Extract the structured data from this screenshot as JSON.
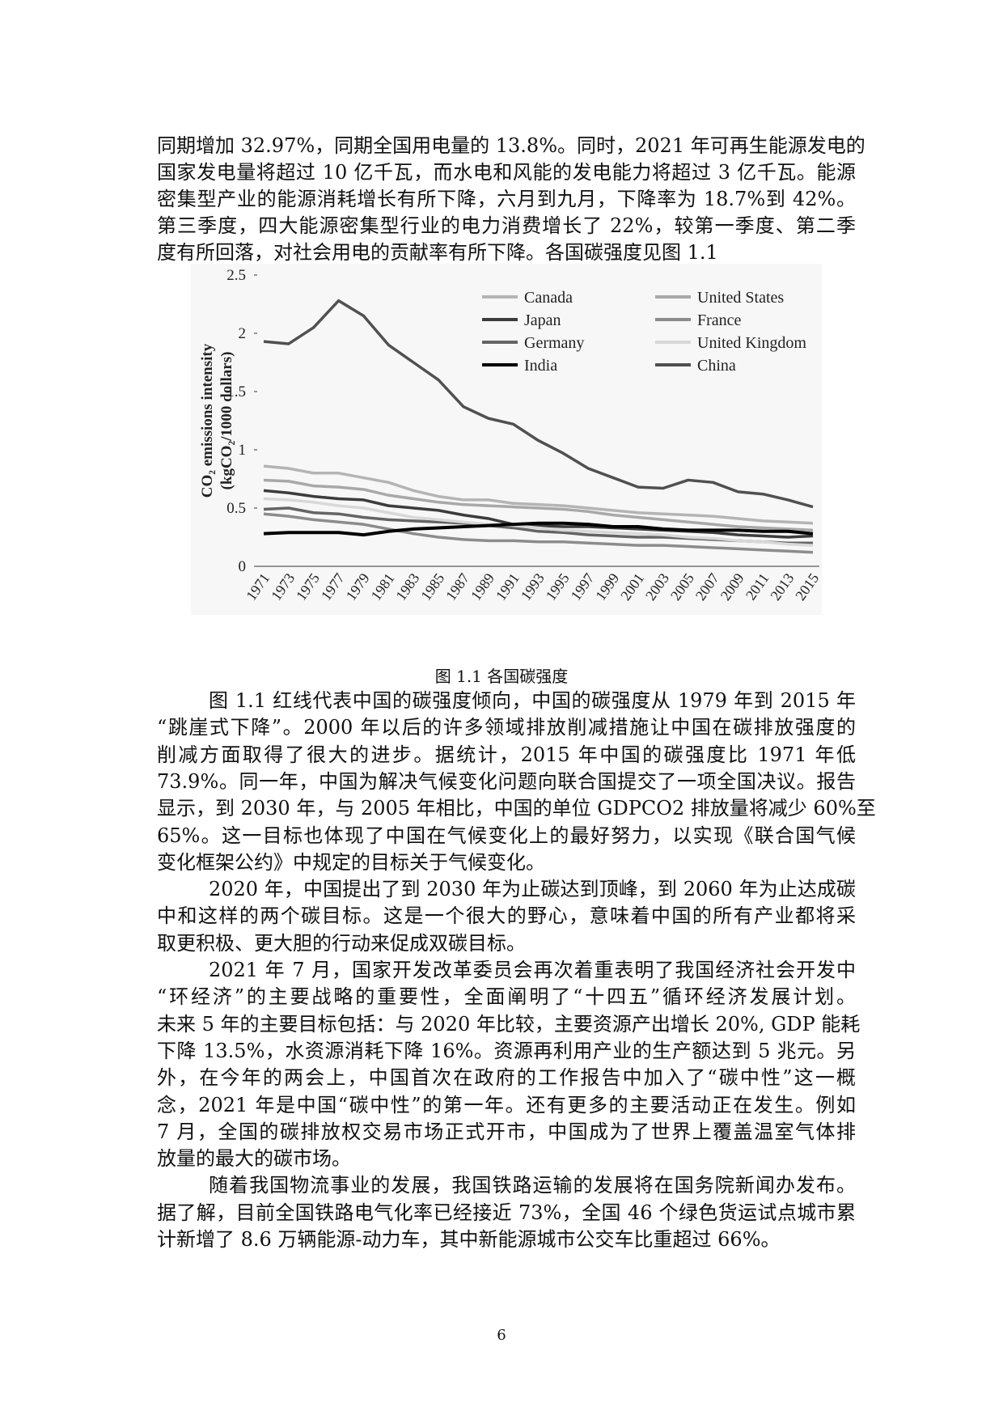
{
  "top_lines": [
    "同期增加 32.97%，同期全国用电量的 13.8%。同时，2021 年可再生能源发电的",
    "国家发电量将超过 10 亿千瓦，而水电和风能的发电能力将超过 3 亿千瓦。能源",
    "密集型产业的能源消耗增长有所下降，六月到九月，下降率为 18.7%到 42%。",
    "第三季度，四大能源密集型行业的电力消费增长了 22%，较第一季度、第二季",
    "度有所回落，对社会用电的贡献率有所下降。各国碳强度见图 1.1"
  ],
  "chart_data": {
    "type": "line",
    "ylabel": [
      "CO₂ emissions intensity",
      "(kgCO₂/1000 dollars)"
    ],
    "categories": [
      "1971",
      "1973",
      "1975",
      "1977",
      "1979",
      "1981",
      "1983",
      "1985",
      "1987",
      "1989",
      "1991",
      "1993",
      "1995",
      "1997",
      "1999",
      "2001",
      "2003",
      "2005",
      "2007",
      "2009",
      "2011",
      "2013",
      "2015"
    ],
    "ylim": [
      0,
      2.5
    ],
    "yticks": [
      0,
      0.5,
      1,
      1.5,
      2,
      2.5
    ],
    "legend_position": "upper right",
    "series": [
      {
        "name": "Canada",
        "color": "#b4b4b4",
        "values": [
          0.86,
          0.84,
          0.8,
          0.8,
          0.76,
          0.72,
          0.65,
          0.6,
          0.57,
          0.57,
          0.54,
          0.53,
          0.52,
          0.5,
          0.48,
          0.46,
          0.45,
          0.44,
          0.43,
          0.41,
          0.39,
          0.38,
          0.37
        ]
      },
      {
        "name": "United States",
        "color": "#a8a8a8",
        "values": [
          0.74,
          0.73,
          0.69,
          0.68,
          0.66,
          0.61,
          0.58,
          0.55,
          0.53,
          0.52,
          0.51,
          0.5,
          0.49,
          0.47,
          0.44,
          0.42,
          0.4,
          0.38,
          0.36,
          0.34,
          0.33,
          0.32,
          0.31
        ]
      },
      {
        "name": "Japan",
        "color": "#3c3c3c",
        "values": [
          0.65,
          0.63,
          0.6,
          0.58,
          0.57,
          0.52,
          0.5,
          0.48,
          0.44,
          0.41,
          0.36,
          0.35,
          0.34,
          0.34,
          0.33,
          0.32,
          0.31,
          0.3,
          0.29,
          0.27,
          0.26,
          0.25,
          0.26
        ]
      },
      {
        "name": "France",
        "color": "#8c8c8c",
        "values": [
          0.45,
          0.43,
          0.4,
          0.38,
          0.36,
          0.32,
          0.28,
          0.25,
          0.23,
          0.22,
          0.22,
          0.21,
          0.21,
          0.2,
          0.19,
          0.18,
          0.18,
          0.17,
          0.16,
          0.15,
          0.14,
          0.13,
          0.12
        ]
      },
      {
        "name": "Germany",
        "color": "#646464",
        "values": [
          0.49,
          0.5,
          0.46,
          0.45,
          0.42,
          0.4,
          0.39,
          0.38,
          0.37,
          0.35,
          0.33,
          0.3,
          0.29,
          0.27,
          0.26,
          0.25,
          0.25,
          0.24,
          0.23,
          0.22,
          0.21,
          0.2,
          0.2
        ]
      },
      {
        "name": "United Kingdom",
        "color": "#d8d8d8",
        "values": [
          0.58,
          0.57,
          0.55,
          0.52,
          0.5,
          0.46,
          0.42,
          0.4,
          0.38,
          0.36,
          0.35,
          0.33,
          0.31,
          0.3,
          0.29,
          0.28,
          0.27,
          0.25,
          0.24,
          0.22,
          0.21,
          0.19,
          0.18
        ]
      },
      {
        "name": "India",
        "color": "#000000",
        "values": [
          0.28,
          0.29,
          0.29,
          0.29,
          0.27,
          0.3,
          0.32,
          0.33,
          0.34,
          0.35,
          0.36,
          0.37,
          0.37,
          0.36,
          0.34,
          0.34,
          0.32,
          0.31,
          0.31,
          0.31,
          0.3,
          0.3,
          0.28
        ]
      },
      {
        "name": "China",
        "color": "#505050",
        "values": [
          1.93,
          1.91,
          2.05,
          2.28,
          2.15,
          1.9,
          1.75,
          1.6,
          1.37,
          1.27,
          1.22,
          1.08,
          0.97,
          0.84,
          0.76,
          0.68,
          0.67,
          0.74,
          0.72,
          0.64,
          0.62,
          0.57,
          0.51
        ]
      }
    ]
  },
  "caption": "图 1.1  各国碳强度",
  "paragraphs": [
    [
      "图 1.1 红线代表中国的碳强度倾向，中国的碳强度从 1979 年到 2015 年",
      "“跳崖式下降”。2000 年以后的许多领域排放削减措施让中国在碳排放强度的",
      "削减方面取得了很大的进步。据统计，2015 年中国的碳强度比 1971 年低",
      "73.9%。同一年，中国为解决气候变化问题向联合国提交了一项全国决议。报告",
      "显示，到 2030 年，与 2005 年相比，中国的单位  GDPCO2 排放量将减少 60%至",
      "65%。这一目标也体现了中国在气候变化上的最好努力，以实现《联合国气候",
      "变化框架公约》中规定的目标关于气候变化。"
    ],
    [
      "2020 年，中国提出了到 2030 年为止碳达到顶峰，到 2060 年为止达成碳",
      "中和这样的两个碳目标。这是一个很大的野心，意味着中国的所有产业都将采",
      "取更积极、更大胆的行动来促成双碳目标。"
    ],
    [
      "2021 年 7 月，国家开发改革委员会再次着重表明了我国经济社会开发中",
      "“环经济”的主要战略的重要性，全面阐明了“十四五”循环经济发展计划。",
      "未来 5 年的主要目标包括：与 2020 年比较，主要资源产出增长 20%, GDP 能耗",
      "下降 13.5%，水资源消耗下降 16%。资源再利用产业的生产额达到 5 兆元。另",
      "外，在今年的两会上，中国首次在政府的工作报告中加入了“碳中性”这一概",
      "念，2021 年是中国“碳中性”的第一年。还有更多的主要活动正在发生。例如",
      "7 月，全国的碳排放权交易市场正式开市，中国成为了世界上覆盖温室气体排",
      "放量的最大的碳市场。"
    ],
    [
      "随着我国物流事业的发展，我国铁路运输的发展将在国务院新闻办发布。",
      "据了解，目前全国铁路电气化率已经接近 73%，全国 46 个绿色货运试点城市累",
      "计新增了 8.6 万辆能源-动力车，其中新能源城市公交车比重超过 66%。"
    ]
  ],
  "page_number": "6"
}
